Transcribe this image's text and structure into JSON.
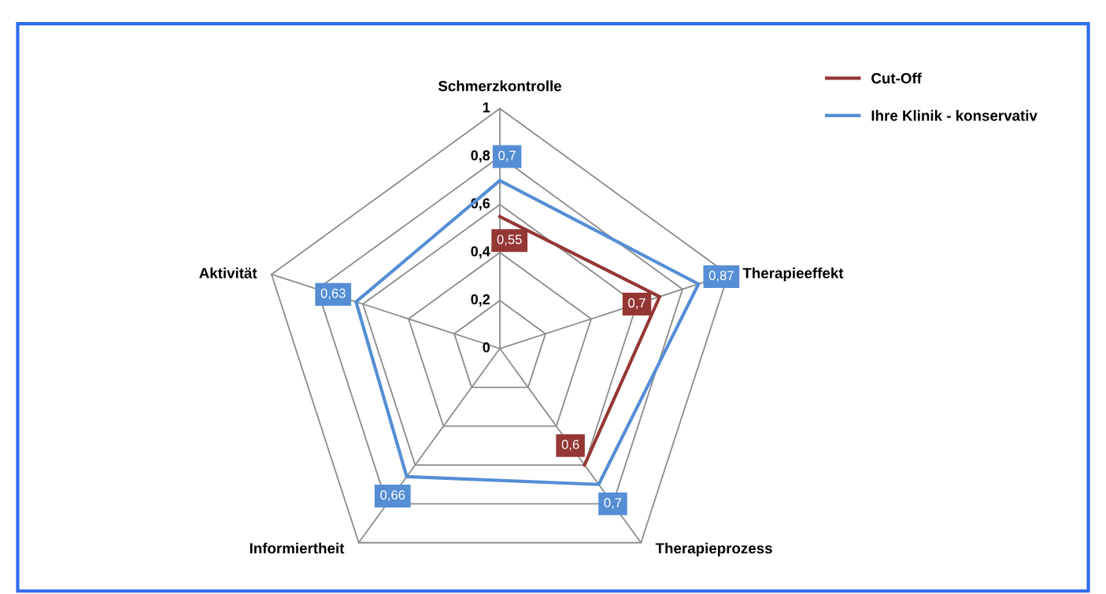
{
  "chart_data": {
    "type": "radar",
    "categories": [
      "Schmerzkontrolle",
      "Therapieeffekt",
      "Therapieprozess",
      "Informiertheit",
      "Aktivität"
    ],
    "ylim": [
      0,
      1
    ],
    "yticks": [
      {
        "value": 0,
        "label": "0"
      },
      {
        "value": 0.2,
        "label": "0,2"
      },
      {
        "value": 0.4,
        "label": "0,4"
      },
      {
        "value": 0.6,
        "label": "0,6"
      },
      {
        "value": 0.8,
        "label": "0,8"
      },
      {
        "value": 1,
        "label": "1"
      }
    ],
    "series": [
      {
        "name": "Cut-Off",
        "color": "#953735",
        "values": [
          0.55,
          0.7,
          0.6,
          null,
          null
        ],
        "value_labels": [
          "0,55",
          "0,7",
          "0,6",
          null,
          null
        ]
      },
      {
        "name": "Ihre Klinik - konservativ",
        "color": "#558ed5",
        "values": [
          0.7,
          0.87,
          0.7,
          0.66,
          0.63
        ],
        "value_labels": [
          "0,7",
          "0,87",
          "0,7",
          "0,66",
          "0,63"
        ]
      }
    ],
    "legend": "top right",
    "grid": true
  }
}
